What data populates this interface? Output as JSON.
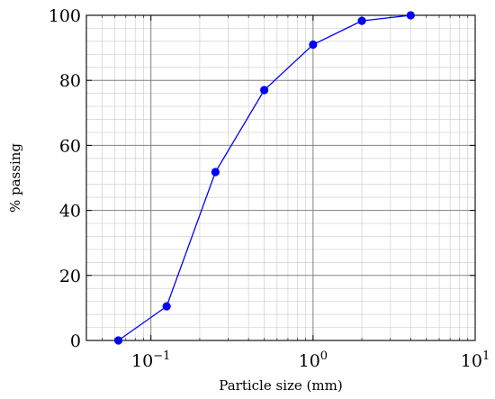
{
  "chart_data": {
    "type": "line",
    "xscale": "log",
    "xlim": [
      0.04,
      10
    ],
    "ylim": [
      0,
      100
    ],
    "grid": true,
    "xlabel": "Particle size (mm)",
    "ylabel": "% passing",
    "xticks": [
      {
        "value": 0.1,
        "base": "10",
        "exp": "−1"
      },
      {
        "value": 1,
        "base": "10",
        "exp": "0"
      },
      {
        "value": 10,
        "base": "10",
        "exp": "1"
      }
    ],
    "yticks": [
      0,
      20,
      40,
      60,
      80,
      100
    ],
    "series": [
      {
        "color": "#0000ff",
        "x": [
          0.063,
          0.125,
          0.25,
          0.5,
          1.0,
          2.0,
          4.0
        ],
        "y": [
          0,
          10.5,
          51.8,
          77.0,
          91.0,
          98.3,
          100
        ]
      }
    ]
  }
}
